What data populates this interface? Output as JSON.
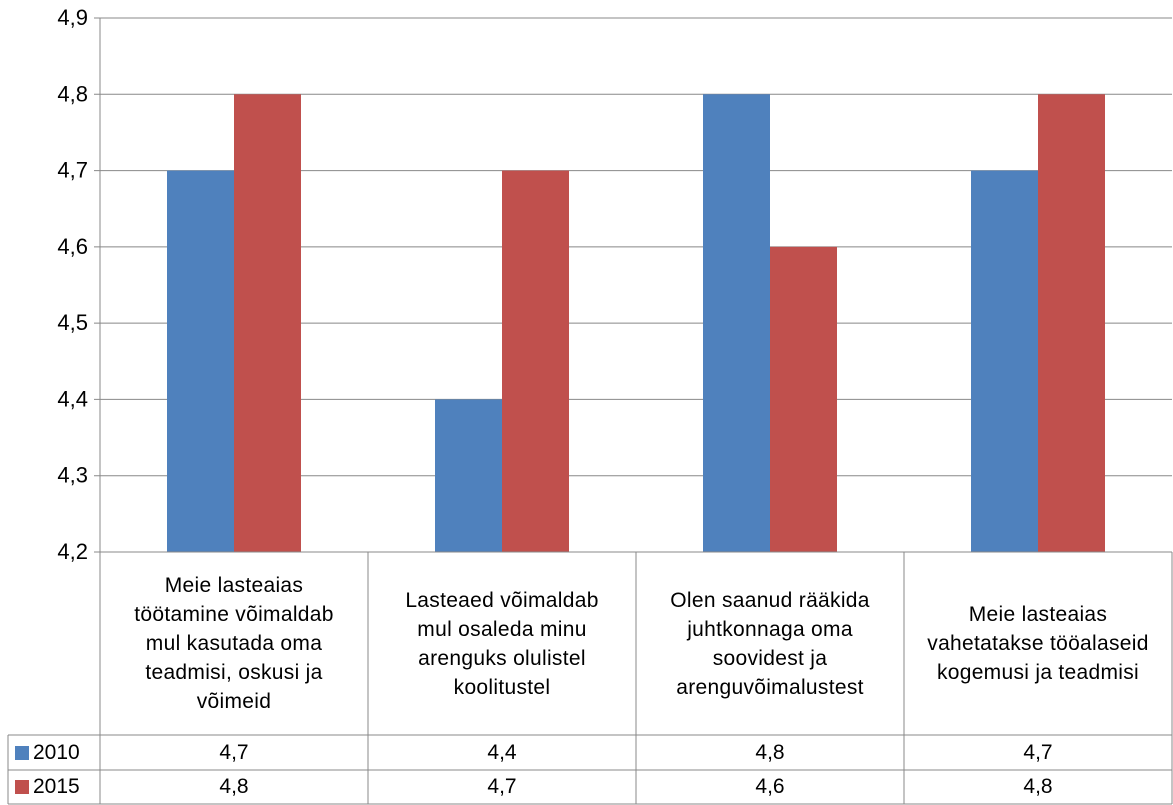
{
  "chart_data": {
    "type": "bar",
    "categories": [
      "Meie lasteaias töötamine võimaldab mul kasutada oma teadmisi, oskusi ja võimeid",
      "Lasteaed võimaldab mul osaleda minu arenguks olulistel koolitustel",
      "Olen saanud rääkida juhtkonnaga oma soovidest ja arenguvõimalustest",
      "Meie lasteaias vahetatakse tööalaseid kogemusi ja teadmisi"
    ],
    "category_lines": [
      [
        "Meie lasteaias",
        "töötamine võimaldab",
        "mul kasutada oma",
        "teadmisi, oskusi ja",
        "võimeid"
      ],
      [
        "Lasteaed võimaldab",
        "mul osaleda minu",
        "arenguks olulistel",
        "koolitustel"
      ],
      [
        "Olen saanud rääkida",
        "juhtkonnaga oma",
        "soovidest ja",
        "arenguvõimalustest"
      ],
      [
        "Meie lasteaias",
        "vahetatakse tööalaseid",
        "kogemusi ja teadmisi"
      ]
    ],
    "series": [
      {
        "name": "2010",
        "color": "#4f81bd",
        "values": [
          4.7,
          4.4,
          4.8,
          4.7
        ],
        "labels": [
          "4,7",
          "4,4",
          "4,8",
          "4,7"
        ]
      },
      {
        "name": "2015",
        "color": "#c0504d",
        "values": [
          4.8,
          4.7,
          4.6,
          4.8
        ],
        "labels": [
          "4,8",
          "4,7",
          "4,6",
          "4,8"
        ]
      }
    ],
    "yticks": [
      "4,2",
      "4,3",
      "4,4",
      "4,5",
      "4,6",
      "4,7",
      "4,8",
      "4,9"
    ],
    "ylim": [
      4.2,
      4.9
    ],
    "grid": true,
    "legend": "data-table-left",
    "title": "",
    "xlabel": "",
    "ylabel": ""
  }
}
